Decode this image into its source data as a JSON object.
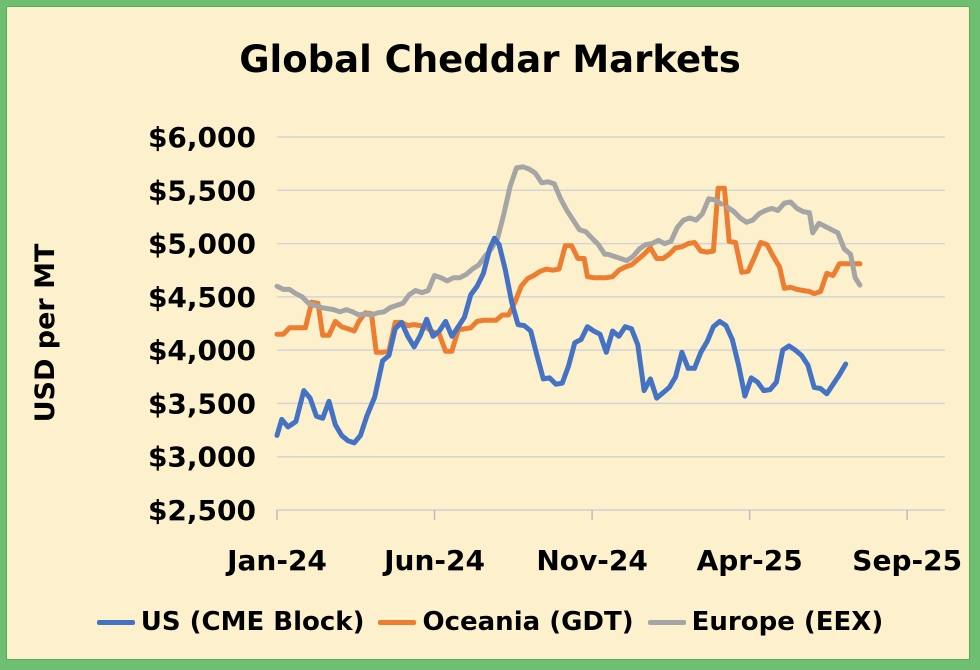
{
  "chart_data": {
    "type": "line",
    "title": "Global Cheddar Markets",
    "xlabel": "",
    "ylabel": "USD per MT",
    "ylim": [
      2500,
      6000
    ],
    "y_ticks": [
      2500,
      3000,
      3500,
      4000,
      4500,
      5000,
      5500,
      6000
    ],
    "y_tick_labels": [
      "$2,500",
      "$3,000",
      "$3,500",
      "$4,000",
      "$4,500",
      "$5,000",
      "$5,500",
      "$6,000"
    ],
    "x_start_month_index": 0,
    "x_end_month_index": 21.2,
    "x_tick_positions": [
      0,
      5,
      10,
      15,
      20
    ],
    "x_tick_labels": [
      "Jan-24",
      "Jun-24",
      "Nov-24",
      "Apr-25",
      "Sep-25"
    ],
    "grid": true,
    "legend_position": "bottom",
    "series": [
      {
        "name": "US (CME Block)",
        "color": "#4472c4",
        "points": [
          [
            0,
            3200
          ],
          [
            0.15,
            3350
          ],
          [
            0.35,
            3280
          ],
          [
            0.6,
            3330
          ],
          [
            0.85,
            3620
          ],
          [
            1.05,
            3550
          ],
          [
            1.25,
            3380
          ],
          [
            1.45,
            3360
          ],
          [
            1.65,
            3520
          ],
          [
            1.85,
            3300
          ],
          [
            2.05,
            3200
          ],
          [
            2.25,
            3150
          ],
          [
            2.45,
            3130
          ],
          [
            2.65,
            3200
          ],
          [
            2.85,
            3380
          ],
          [
            3.1,
            3560
          ],
          [
            3.35,
            3900
          ],
          [
            3.55,
            3950
          ],
          [
            3.75,
            4200
          ],
          [
            3.95,
            4260
          ],
          [
            4.15,
            4130
          ],
          [
            4.35,
            4030
          ],
          [
            4.55,
            4140
          ],
          [
            4.75,
            4290
          ],
          [
            4.95,
            4130
          ],
          [
            5.15,
            4180
          ],
          [
            5.35,
            4270
          ],
          [
            5.55,
            4130
          ],
          [
            5.75,
            4220
          ],
          [
            5.95,
            4310
          ],
          [
            6.15,
            4520
          ],
          [
            6.35,
            4600
          ],
          [
            6.55,
            4720
          ],
          [
            6.75,
            4950
          ],
          [
            6.9,
            5050
          ],
          [
            7.05,
            4990
          ],
          [
            7.25,
            4750
          ],
          [
            7.45,
            4450
          ],
          [
            7.65,
            4240
          ],
          [
            7.85,
            4230
          ],
          [
            8.05,
            4180
          ],
          [
            8.25,
            3950
          ],
          [
            8.45,
            3730
          ],
          [
            8.65,
            3740
          ],
          [
            8.85,
            3680
          ],
          [
            9.05,
            3690
          ],
          [
            9.25,
            3850
          ],
          [
            9.45,
            4070
          ],
          [
            9.65,
            4100
          ],
          [
            9.85,
            4220
          ],
          [
            10.05,
            4180
          ],
          [
            10.25,
            4150
          ],
          [
            10.45,
            3980
          ],
          [
            10.65,
            4180
          ],
          [
            10.85,
            4130
          ],
          [
            11.05,
            4220
          ],
          [
            11.25,
            4200
          ],
          [
            11.45,
            4050
          ],
          [
            11.65,
            3620
          ],
          [
            11.85,
            3730
          ],
          [
            12.05,
            3550
          ],
          [
            12.25,
            3600
          ],
          [
            12.45,
            3650
          ],
          [
            12.65,
            3750
          ],
          [
            12.85,
            3980
          ],
          [
            13.05,
            3830
          ],
          [
            13.25,
            3830
          ],
          [
            13.45,
            3980
          ],
          [
            13.65,
            4080
          ],
          [
            13.85,
            4220
          ],
          [
            14.05,
            4270
          ],
          [
            14.25,
            4230
          ],
          [
            14.45,
            4100
          ],
          [
            14.65,
            3860
          ],
          [
            14.85,
            3570
          ],
          [
            15.05,
            3740
          ],
          [
            15.25,
            3700
          ],
          [
            15.45,
            3620
          ],
          [
            15.65,
            3630
          ],
          [
            15.85,
            3700
          ],
          [
            16.05,
            4000
          ],
          [
            16.25,
            4040
          ],
          [
            16.45,
            4000
          ],
          [
            16.65,
            3950
          ],
          [
            16.85,
            3860
          ],
          [
            17.05,
            3650
          ],
          [
            17.25,
            3640
          ],
          [
            17.45,
            3590
          ],
          [
            17.65,
            3680
          ],
          [
            17.85,
            3770
          ],
          [
            18.05,
            3870
          ]
        ]
      },
      {
        "name": "Oceania (GDT)",
        "color": "#ed7d31",
        "points": [
          [
            0,
            4150
          ],
          [
            0.2,
            4150
          ],
          [
            0.4,
            4210
          ],
          [
            0.7,
            4210
          ],
          [
            0.9,
            4210
          ],
          [
            1.1,
            4450
          ],
          [
            1.3,
            4440
          ],
          [
            1.45,
            4140
          ],
          [
            1.65,
            4140
          ],
          [
            1.85,
            4270
          ],
          [
            2.05,
            4220
          ],
          [
            2.25,
            4200
          ],
          [
            2.45,
            4180
          ],
          [
            2.6,
            4270
          ],
          [
            2.8,
            4350
          ],
          [
            3.0,
            4340
          ],
          [
            3.15,
            3980
          ],
          [
            3.35,
            3980
          ],
          [
            3.55,
            3990
          ],
          [
            3.75,
            4260
          ],
          [
            3.95,
            4260
          ],
          [
            4.15,
            4230
          ],
          [
            4.35,
            4240
          ],
          [
            4.55,
            4230
          ],
          [
            4.75,
            4210
          ],
          [
            4.95,
            4170
          ],
          [
            5.15,
            4150
          ],
          [
            5.35,
            3990
          ],
          [
            5.55,
            3990
          ],
          [
            5.75,
            4190
          ],
          [
            5.95,
            4200
          ],
          [
            6.15,
            4210
          ],
          [
            6.35,
            4270
          ],
          [
            6.55,
            4280
          ],
          [
            6.75,
            4280
          ],
          [
            6.95,
            4280
          ],
          [
            7.15,
            4330
          ],
          [
            7.35,
            4330
          ],
          [
            7.55,
            4450
          ],
          [
            7.75,
            4600
          ],
          [
            7.95,
            4670
          ],
          [
            8.15,
            4700
          ],
          [
            8.35,
            4740
          ],
          [
            8.55,
            4760
          ],
          [
            8.75,
            4750
          ],
          [
            8.95,
            4760
          ],
          [
            9.15,
            4980
          ],
          [
            9.35,
            4980
          ],
          [
            9.55,
            4860
          ],
          [
            9.75,
            4860
          ],
          [
            9.85,
            4690
          ],
          [
            10.05,
            4680
          ],
          [
            10.25,
            4680
          ],
          [
            10.45,
            4680
          ],
          [
            10.65,
            4690
          ],
          [
            10.85,
            4750
          ],
          [
            11.05,
            4780
          ],
          [
            11.25,
            4800
          ],
          [
            11.45,
            4850
          ],
          [
            11.65,
            4900
          ],
          [
            11.85,
            4960
          ],
          [
            12.05,
            4860
          ],
          [
            12.25,
            4860
          ],
          [
            12.45,
            4900
          ],
          [
            12.65,
            4960
          ],
          [
            12.85,
            4970
          ],
          [
            13.05,
            5000
          ],
          [
            13.25,
            5010
          ],
          [
            13.45,
            4930
          ],
          [
            13.65,
            4920
          ],
          [
            13.85,
            4930
          ],
          [
            14.0,
            5520
          ],
          [
            14.2,
            5520
          ],
          [
            14.35,
            5020
          ],
          [
            14.55,
            5010
          ],
          [
            14.75,
            4730
          ],
          [
            14.95,
            4740
          ],
          [
            15.15,
            4870
          ],
          [
            15.35,
            5010
          ],
          [
            15.55,
            4990
          ],
          [
            15.75,
            4880
          ],
          [
            15.95,
            4780
          ],
          [
            16.1,
            4580
          ],
          [
            16.3,
            4590
          ],
          [
            16.5,
            4570
          ],
          [
            16.7,
            4560
          ],
          [
            16.9,
            4550
          ],
          [
            17.05,
            4530
          ],
          [
            17.25,
            4550
          ],
          [
            17.45,
            4720
          ],
          [
            17.65,
            4700
          ],
          [
            17.85,
            4810
          ],
          [
            18.05,
            4810
          ],
          [
            18.25,
            4810
          ],
          [
            18.5,
            4810
          ]
        ]
      },
      {
        "name": "Europe (EEX)",
        "color": "#a5a5a5",
        "gap_after_index": 69,
        "points": [
          [
            0,
            4600
          ],
          [
            0.2,
            4570
          ],
          [
            0.4,
            4570
          ],
          [
            0.6,
            4530
          ],
          [
            0.8,
            4500
          ],
          [
            1.0,
            4440
          ],
          [
            1.2,
            4420
          ],
          [
            1.4,
            4400
          ],
          [
            1.6,
            4390
          ],
          [
            1.8,
            4380
          ],
          [
            2.0,
            4360
          ],
          [
            2.2,
            4380
          ],
          [
            2.4,
            4360
          ],
          [
            2.6,
            4330
          ],
          [
            2.8,
            4340
          ],
          [
            3.0,
            4330
          ],
          [
            3.2,
            4350
          ],
          [
            3.4,
            4360
          ],
          [
            3.6,
            4400
          ],
          [
            3.8,
            4420
          ],
          [
            4.0,
            4440
          ],
          [
            4.2,
            4520
          ],
          [
            4.4,
            4560
          ],
          [
            4.6,
            4540
          ],
          [
            4.8,
            4560
          ],
          [
            5.0,
            4700
          ],
          [
            5.2,
            4680
          ],
          [
            5.4,
            4650
          ],
          [
            5.6,
            4680
          ],
          [
            5.8,
            4680
          ],
          [
            6.0,
            4710
          ],
          [
            6.2,
            4760
          ],
          [
            6.4,
            4800
          ],
          [
            6.6,
            4880
          ],
          [
            6.8,
            4950
          ],
          [
            7.0,
            5050
          ],
          [
            7.2,
            5280
          ],
          [
            7.4,
            5540
          ],
          [
            7.6,
            5710
          ],
          [
            7.8,
            5720
          ],
          [
            8.0,
            5700
          ],
          [
            8.2,
            5660
          ],
          [
            8.4,
            5570
          ],
          [
            8.6,
            5580
          ],
          [
            8.8,
            5560
          ],
          [
            9.0,
            5420
          ],
          [
            9.2,
            5310
          ],
          [
            9.4,
            5220
          ],
          [
            9.6,
            5130
          ],
          [
            9.8,
            5110
          ],
          [
            10.0,
            5050
          ],
          [
            10.2,
            4990
          ],
          [
            10.4,
            4900
          ],
          [
            10.5,
            4900
          ],
          [
            11.1,
            4840
          ],
          [
            11.3,
            4880
          ],
          [
            11.5,
            4950
          ],
          [
            11.7,
            4990
          ],
          [
            11.9,
            5000
          ],
          [
            12.1,
            5030
          ],
          [
            12.3,
            5000
          ],
          [
            12.5,
            5020
          ],
          [
            12.7,
            5150
          ],
          [
            12.9,
            5220
          ],
          [
            13.1,
            5240
          ],
          [
            13.3,
            5220
          ],
          [
            13.5,
            5280
          ],
          [
            13.7,
            5420
          ],
          [
            13.9,
            5410
          ],
          [
            14.1,
            5370
          ],
          [
            14.3,
            5340
          ],
          [
            14.5,
            5300
          ],
          [
            14.7,
            5240
          ],
          [
            14.9,
            5200
          ],
          [
            15.1,
            5220
          ],
          [
            15.3,
            5280
          ],
          [
            15.5,
            5310
          ],
          [
            15.7,
            5330
          ],
          [
            15.9,
            5310
          ],
          [
            16.1,
            5380
          ],
          [
            16.3,
            5390
          ],
          [
            16.5,
            5330
          ],
          [
            16.7,
            5300
          ],
          [
            16.9,
            5290
          ],
          [
            17.0,
            5100
          ],
          [
            17.2,
            5190
          ],
          [
            17.4,
            5160
          ],
          [
            17.6,
            5130
          ],
          [
            17.8,
            5100
          ],
          [
            18.0,
            4950
          ],
          [
            18.2,
            4900
          ],
          [
            18.35,
            4680
          ],
          [
            18.5,
            4610
          ]
        ]
      }
    ]
  }
}
